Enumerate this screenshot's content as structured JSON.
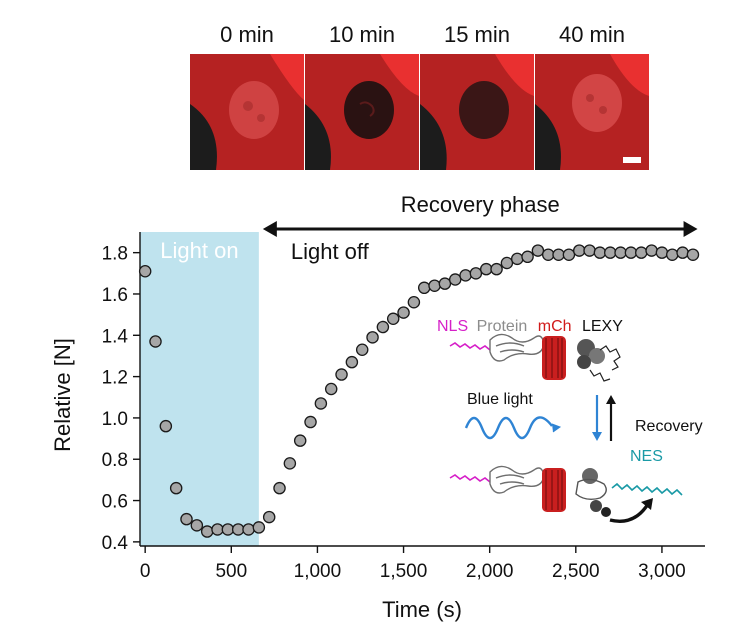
{
  "panels": {
    "labels": [
      "0 min",
      "10 min",
      "15 min",
      "40 min"
    ]
  },
  "chart_data": {
    "type": "scatter",
    "xlabel": "Time (s)",
    "ylabel": "Relative [N]",
    "xlim": [
      -30,
      3250
    ],
    "ylim": [
      0.38,
      1.9
    ],
    "xticks": [
      0,
      500,
      1000,
      1500,
      2000,
      2500,
      3000
    ],
    "xtick_labels": [
      "0",
      "500",
      "1,000",
      "1,500",
      "2,000",
      "2,500",
      "3,000"
    ],
    "yticks": [
      0.4,
      0.6,
      0.8,
      1.0,
      1.2,
      1.4,
      1.6,
      1.8
    ],
    "ytick_labels": [
      "0.4",
      "0.6",
      "0.8",
      "1.0",
      "1.2",
      "1.4",
      "1.6",
      "1.8"
    ],
    "light_on_region": {
      "x_start": -30,
      "x_end": 660,
      "label": "Light on",
      "color": "#bfe3ee"
    },
    "recovery_phase": {
      "label": "Recovery phase",
      "x_start": 660,
      "x_end": 3230
    },
    "light_off_label": "Light off",
    "marker_color": "#a6a6a6",
    "series": [
      {
        "name": "Relative [N]",
        "x": [
          0,
          60,
          120,
          180,
          240,
          300,
          360,
          420,
          480,
          540,
          600,
          660,
          720,
          780,
          840,
          900,
          960,
          1020,
          1080,
          1140,
          1200,
          1260,
          1320,
          1380,
          1440,
          1500,
          1560,
          1620,
          1680,
          1740,
          1800,
          1860,
          1920,
          1980,
          2040,
          2100,
          2160,
          2220,
          2280,
          2340,
          2400,
          2460,
          2520,
          2580,
          2640,
          2700,
          2760,
          2820,
          2880,
          2940,
          3000,
          3060,
          3120,
          3180
        ],
        "y": [
          1.71,
          1.37,
          0.96,
          0.66,
          0.51,
          0.48,
          0.45,
          0.46,
          0.46,
          0.46,
          0.46,
          0.47,
          0.52,
          0.66,
          0.78,
          0.89,
          0.98,
          1.07,
          1.14,
          1.21,
          1.27,
          1.33,
          1.39,
          1.44,
          1.48,
          1.51,
          1.56,
          1.63,
          1.64,
          1.65,
          1.67,
          1.69,
          1.7,
          1.72,
          1.72,
          1.75,
          1.77,
          1.78,
          1.81,
          1.79,
          1.79,
          1.79,
          1.81,
          1.81,
          1.8,
          1.8,
          1.8,
          1.8,
          1.8,
          1.81,
          1.8,
          1.79,
          1.8,
          1.79
        ]
      }
    ]
  },
  "inset": {
    "label_nls": "NLS",
    "label_protein": "Protein",
    "label_mch": "mCh",
    "label_lexy": "LEXY",
    "label_blue_light": "Blue light",
    "label_recovery": "Recovery",
    "label_nes": "NES",
    "colors": {
      "nls": "#d61fc8",
      "protein": "#8c8c8c",
      "mch": "#d11a1a",
      "lexy": "#111111",
      "nes": "#1a9aa6",
      "blue": "#2f84d4"
    }
  }
}
